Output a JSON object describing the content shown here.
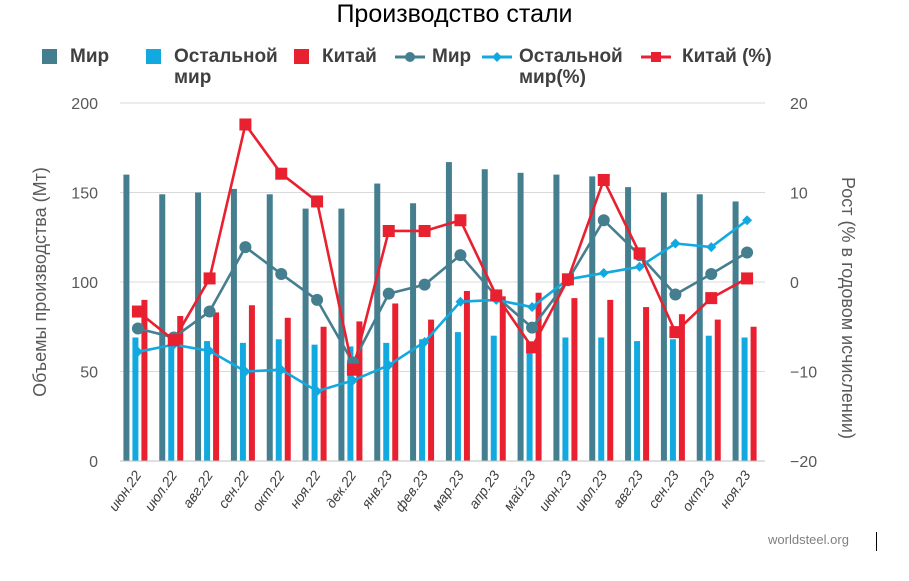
{
  "chart_data": {
    "type": "bar+line",
    "title": "Производство стали",
    "categories": [
      "июн.22",
      "июл.22",
      "авг.22",
      "сен.22",
      "окт.22",
      "ноя.22",
      "дек.22",
      "янв.23",
      "фев.23",
      "мар.23",
      "апр.23",
      "май.23",
      "июн.23",
      "июл.23",
      "авг.23",
      "сен.23",
      "окт.23",
      "ноя.23"
    ],
    "ylabel": "Объемы производства (Мт)",
    "y2label": "Рост (% в годовом исчислении)",
    "ylim": [
      0,
      200
    ],
    "y2lim": [
      -20,
      20
    ],
    "yticks": [
      "0",
      "50",
      "100",
      "150",
      "200"
    ],
    "y2ticks": [
      "−20",
      "−10",
      "0",
      "10",
      "20"
    ],
    "bar_series": [
      {
        "name": "Мир",
        "color": "#457f8f",
        "values": [
          160,
          149,
          150,
          152,
          149,
          141,
          141,
          155,
          144,
          167,
          163,
          161,
          160,
          159,
          153,
          150,
          149,
          145
        ]
      },
      {
        "name": "Остальной мир",
        "color": "#12a9e0",
        "values": [
          69,
          69,
          67,
          66,
          68,
          65,
          64,
          66,
          68,
          72,
          70,
          66,
          69,
          69,
          67,
          68,
          70,
          69
        ]
      },
      {
        "name": "Китай",
        "color": "#e8202f",
        "values": [
          90,
          81,
          83,
          87,
          80,
          75,
          78,
          88,
          79,
          95,
          92,
          94,
          91,
          90,
          86,
          82,
          79,
          75
        ]
      }
    ],
    "line_series": [
      {
        "name": "Мир",
        "color": "#457f8f",
        "marker": "circle",
        "values": [
          -5.2,
          -6.2,
          -3.3,
          3.9,
          0.9,
          -2.0,
          -9.0,
          -1.3,
          -0.3,
          3.0,
          -1.6,
          -5.1,
          0.2,
          6.9,
          3.0,
          -1.4,
          0.9,
          3.3
        ]
      },
      {
        "name": "Остальной мир (%)",
        "color": "#12a9e0",
        "marker": "diamond",
        "values": [
          -7.8,
          -7.0,
          -7.7,
          -10.0,
          -9.8,
          -12.2,
          -11.0,
          -9.3,
          -6.7,
          -2.2,
          -2.0,
          -2.8,
          0.3,
          1.0,
          1.7,
          4.3,
          3.9,
          6.9
        ]
      },
      {
        "name": "Китай (%)",
        "color": "#e8202f",
        "marker": "square",
        "values": [
          -3.3,
          -6.5,
          0.4,
          17.6,
          12.1,
          9.0,
          -9.8,
          5.7,
          5.7,
          6.9,
          -1.5,
          -7.3,
          0.3,
          11.4,
          3.2,
          -5.6,
          -1.8,
          0.4
        ]
      }
    ],
    "legend": [
      {
        "label": "Мир",
        "swatch": "bar",
        "color": "#457f8f"
      },
      {
        "label": "Остальной мир",
        "swatch": "bar",
        "color": "#12a9e0"
      },
      {
        "label": "Китай",
        "swatch": "bar",
        "color": "#e8202f"
      },
      {
        "label": "Мир",
        "swatch": "line-circle",
        "color": "#457f8f"
      },
      {
        "label": "Остальной мир(%)",
        "swatch": "line-diamond",
        "color": "#12a9e0"
      },
      {
        "label": "Китай (%)",
        "swatch": "line-square",
        "color": "#e8202f"
      }
    ],
    "source": "worldsteel.org"
  }
}
